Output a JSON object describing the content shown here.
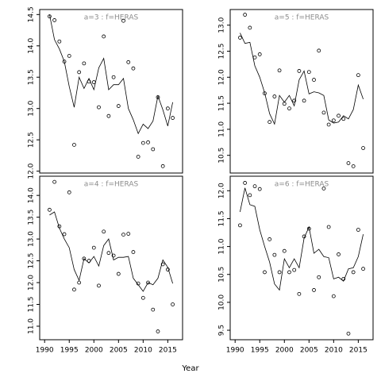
{
  "chart_data": [
    {
      "type": "line",
      "title": "a=3 : f=HERAS",
      "x": [
        1991,
        1992,
        1993,
        1994,
        1995,
        1996,
        1997,
        1998,
        1999,
        2000,
        2001,
        2002,
        2003,
        2004,
        2005,
        2006,
        2007,
        2008,
        2009,
        2010,
        2011,
        2012,
        2013,
        2014,
        2015,
        2016
      ],
      "series": [
        {
          "style": "points",
          "color": "#000000",
          "values": [
            14.47,
            14.41,
            14.07,
            13.75,
            13.84,
            12.42,
            13.58,
            13.72,
            13.43,
            13.42,
            13.02,
            14.15,
            12.88,
            13.5,
            13.04,
            14.4,
            13.74,
            13.64,
            12.23,
            12.45,
            12.46,
            12.35,
            13.18,
            12.08,
            13.0,
            12.85
          ]
        },
        {
          "style": "line",
          "color": "#000000",
          "values": [
            14.5,
            14.1,
            13.95,
            13.75,
            13.35,
            13.02,
            13.5,
            13.32,
            13.48,
            13.3,
            13.65,
            13.8,
            13.3,
            13.38,
            13.38,
            13.48,
            13.0,
            12.82,
            12.6,
            12.75,
            12.68,
            12.8,
            13.2,
            12.98,
            12.72,
            13.1
          ]
        }
      ],
      "xlim": [
        1989,
        2018
      ],
      "ylim": [
        11.97,
        14.58
      ],
      "yticks": [
        {
          "value": 12,
          "label": "12.0"
        },
        12.5,
        {
          "value": 13,
          "label": "13.0"
        },
        13.5,
        {
          "value": 14,
          "label": "14.0"
        },
        14.5
      ]
    },
    {
      "type": "line",
      "title": "a=5 : f=HERAS",
      "x": [
        1991,
        1992,
        1993,
        1994,
        1995,
        1996,
        1997,
        1998,
        1999,
        2000,
        2001,
        2002,
        2003,
        2004,
        2005,
        2006,
        2007,
        2008,
        2009,
        2010,
        2011,
        2012,
        2013,
        2014,
        2015,
        2016
      ],
      "series": [
        {
          "style": "points",
          "color": "#000000",
          "values": [
            12.76,
            13.2,
            12.95,
            12.38,
            12.44,
            11.69,
            11.14,
            11.63,
            12.13,
            11.49,
            11.4,
            11.55,
            12.12,
            11.55,
            12.1,
            11.95,
            12.51,
            11.32,
            11.09,
            11.17,
            11.26,
            11.2,
            10.35,
            10.29,
            12.04,
            10.64
          ]
        },
        {
          "style": "line",
          "color": "#000000",
          "values": [
            12.85,
            12.65,
            12.67,
            12.22,
            12.0,
            11.7,
            11.3,
            11.1,
            11.65,
            11.52,
            11.65,
            11.45,
            11.95,
            12.12,
            11.68,
            11.72,
            11.7,
            11.65,
            11.18,
            11.12,
            11.14,
            11.26,
            11.2,
            11.38,
            11.85,
            11.58
          ]
        }
      ],
      "xlim": [
        1989,
        2018
      ],
      "ylim": [
        10.16,
        13.3
      ],
      "yticks": [
        10.5,
        {
          "value": 11,
          "label": "11.0"
        },
        11.5,
        {
          "value": 12,
          "label": "12.0"
        },
        12.5,
        {
          "value": 13,
          "label": "13.0"
        }
      ]
    },
    {
      "type": "line",
      "title": "a=4 : f=HERAS",
      "x": [
        1991,
        1992,
        1993,
        1994,
        1995,
        1996,
        1997,
        1998,
        1999,
        2000,
        2001,
        2002,
        2003,
        2004,
        2005,
        2006,
        2007,
        2008,
        2009,
        2010,
        2011,
        2012,
        2013,
        2014,
        2015,
        2016
      ],
      "series": [
        {
          "style": "points",
          "color": "#000000",
          "values": [
            13.67,
            14.31,
            13.29,
            13.11,
            14.07,
            11.84,
            12.0,
            12.55,
            12.5,
            12.8,
            11.93,
            13.17,
            12.68,
            12.62,
            12.2,
            13.1,
            13.12,
            12.7,
            11.98,
            11.65,
            12.0,
            11.38,
            10.88,
            12.42,
            12.3,
            11.5
          ]
        },
        {
          "style": "line",
          "color": "#000000",
          "values": [
            13.55,
            13.62,
            13.25,
            13.0,
            12.8,
            12.3,
            12.05,
            12.55,
            12.45,
            12.6,
            12.38,
            12.85,
            13.0,
            12.52,
            12.58,
            12.58,
            12.6,
            12.1,
            11.95,
            11.8,
            12.0,
            11.95,
            12.1,
            12.52,
            12.35,
            11.98
          ]
        }
      ],
      "xlim": [
        1989,
        2018
      ],
      "ylim": [
        10.69,
        14.44
      ],
      "xticks": [
        1990,
        1995,
        2000,
        2005,
        2010,
        2015
      ],
      "yticks": [
        {
          "value": 11,
          "label": "11.0"
        },
        11.5,
        {
          "value": 12,
          "label": "12.0"
        },
        12.5,
        {
          "value": 13,
          "label": "13.0"
        },
        13.5,
        {
          "value": 14,
          "label": "14.0"
        }
      ]
    },
    {
      "type": "line",
      "title": "a=6 : f=HERAS",
      "xlabel": "Year",
      "x": [
        1991,
        1992,
        1993,
        1994,
        1995,
        1996,
        1997,
        1998,
        1999,
        2000,
        2001,
        2002,
        2003,
        2004,
        2005,
        2006,
        2007,
        2008,
        2009,
        2010,
        2011,
        2012,
        2013,
        2014,
        2015,
        2016
      ],
      "series": [
        {
          "style": "points",
          "color": "#000000",
          "values": [
            11.38,
            12.14,
            11.92,
            12.08,
            12.03,
            10.54,
            11.13,
            10.85,
            10.54,
            10.92,
            10.54,
            10.58,
            10.15,
            11.18,
            11.32,
            10.22,
            10.45,
            12.04,
            11.35,
            10.11,
            10.86,
            10.42,
            9.44,
            10.54,
            11.3,
            10.6
          ]
        },
        {
          "style": "line",
          "color": "#000000",
          "values": [
            11.62,
            12.05,
            11.75,
            11.72,
            11.3,
            11.0,
            10.72,
            10.33,
            10.22,
            10.78,
            10.62,
            10.78,
            10.62,
            11.15,
            11.35,
            10.88,
            10.95,
            10.82,
            10.8,
            10.42,
            10.45,
            10.38,
            10.6,
            10.62,
            10.82,
            11.22
          ]
        }
      ],
      "xlim": [
        1989,
        2018
      ],
      "ylim": [
        9.33,
        12.26
      ],
      "xticks": [
        1990,
        1995,
        2000,
        2005,
        2010,
        2015
      ],
      "yticks": [
        9.5,
        {
          "value": 10,
          "label": "10.0"
        },
        10.5,
        {
          "value": 11,
          "label": "11.0"
        },
        11.5,
        {
          "value": 12,
          "label": "12.0"
        }
      ]
    }
  ]
}
